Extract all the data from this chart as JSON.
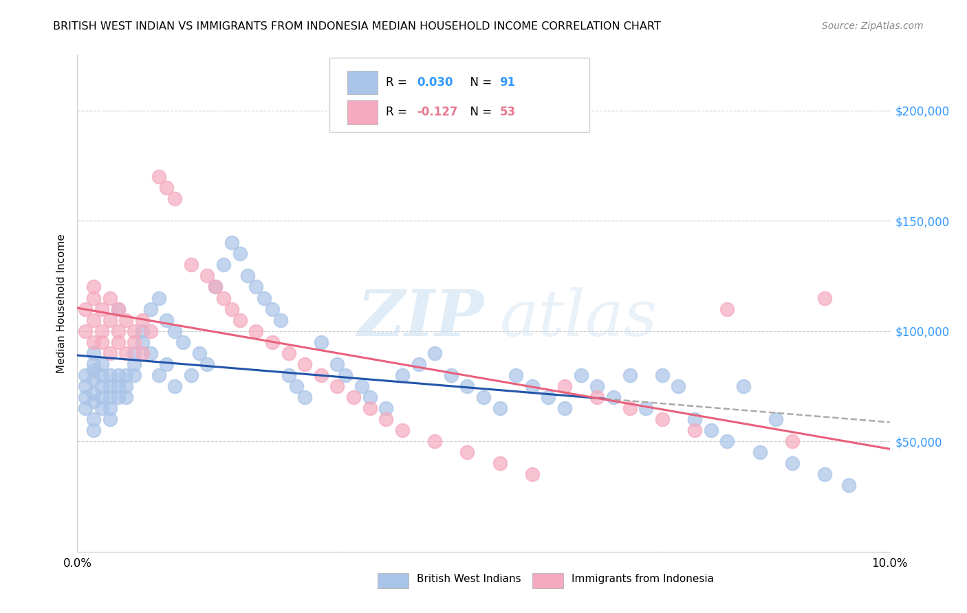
{
  "title": "BRITISH WEST INDIAN VS IMMIGRANTS FROM INDONESIA MEDIAN HOUSEHOLD INCOME CORRELATION CHART",
  "source": "Source: ZipAtlas.com",
  "ylabel": "Median Household Income",
  "r1": 0.03,
  "r2": -0.127,
  "n1": 91,
  "n2": 53,
  "legend_label1": "British West Indians",
  "legend_label2": "Immigrants from Indonesia",
  "color1": "#aac4e8",
  "color2": "#f5aabf",
  "line_color1": "#2255aa",
  "line_color2": "#e8607a",
  "line_color_dashed": "#aaaaaa",
  "ylim": [
    0,
    225000
  ],
  "xlim": [
    0.0,
    0.1
  ],
  "yticks": [
    0,
    50000,
    100000,
    150000,
    200000
  ],
  "ytick_labels": [
    "",
    "$50,000",
    "$100,000",
    "$150,000",
    "$200,000"
  ],
  "watermark_zip": "ZIP",
  "watermark_atlas": "atlas",
  "blue_x": [
    0.001,
    0.001,
    0.001,
    0.001,
    0.002,
    0.002,
    0.002,
    0.002,
    0.002,
    0.002,
    0.002,
    0.002,
    0.003,
    0.003,
    0.003,
    0.003,
    0.003,
    0.004,
    0.004,
    0.004,
    0.004,
    0.004,
    0.005,
    0.005,
    0.005,
    0.005,
    0.006,
    0.006,
    0.006,
    0.007,
    0.007,
    0.007,
    0.008,
    0.008,
    0.009,
    0.009,
    0.01,
    0.01,
    0.011,
    0.011,
    0.012,
    0.012,
    0.013,
    0.014,
    0.015,
    0.016,
    0.017,
    0.018,
    0.019,
    0.02,
    0.021,
    0.022,
    0.023,
    0.024,
    0.025,
    0.026,
    0.027,
    0.028,
    0.03,
    0.032,
    0.033,
    0.035,
    0.036,
    0.038,
    0.04,
    0.042,
    0.044,
    0.046,
    0.048,
    0.05,
    0.052,
    0.054,
    0.056,
    0.058,
    0.06,
    0.062,
    0.064,
    0.066,
    0.068,
    0.07,
    0.072,
    0.074,
    0.076,
    0.078,
    0.08,
    0.082,
    0.084,
    0.086,
    0.088,
    0.092,
    0.095
  ],
  "blue_y": [
    75000,
    80000,
    70000,
    65000,
    72000,
    68000,
    78000,
    82000,
    60000,
    85000,
    90000,
    55000,
    75000,
    80000,
    70000,
    65000,
    85000,
    75000,
    80000,
    70000,
    65000,
    60000,
    80000,
    75000,
    70000,
    110000,
    80000,
    75000,
    70000,
    90000,
    85000,
    80000,
    100000,
    95000,
    110000,
    90000,
    115000,
    80000,
    105000,
    85000,
    100000,
    75000,
    95000,
    80000,
    90000,
    85000,
    120000,
    130000,
    140000,
    135000,
    125000,
    120000,
    115000,
    110000,
    105000,
    80000,
    75000,
    70000,
    95000,
    85000,
    80000,
    75000,
    70000,
    65000,
    80000,
    85000,
    90000,
    80000,
    75000,
    70000,
    65000,
    80000,
    75000,
    70000,
    65000,
    80000,
    75000,
    70000,
    80000,
    65000,
    80000,
    75000,
    60000,
    55000,
    50000,
    75000,
    45000,
    60000,
    40000,
    35000,
    30000
  ],
  "pink_x": [
    0.001,
    0.001,
    0.002,
    0.002,
    0.002,
    0.002,
    0.003,
    0.003,
    0.003,
    0.004,
    0.004,
    0.004,
    0.005,
    0.005,
    0.005,
    0.006,
    0.006,
    0.007,
    0.007,
    0.008,
    0.008,
    0.009,
    0.01,
    0.011,
    0.012,
    0.014,
    0.016,
    0.017,
    0.018,
    0.019,
    0.02,
    0.022,
    0.024,
    0.026,
    0.028,
    0.03,
    0.032,
    0.034,
    0.036,
    0.038,
    0.04,
    0.044,
    0.048,
    0.052,
    0.056,
    0.06,
    0.064,
    0.068,
    0.072,
    0.076,
    0.08,
    0.088,
    0.092
  ],
  "pink_y": [
    100000,
    110000,
    105000,
    95000,
    115000,
    120000,
    100000,
    110000,
    95000,
    105000,
    115000,
    90000,
    110000,
    100000,
    95000,
    105000,
    90000,
    100000,
    95000,
    105000,
    90000,
    100000,
    170000,
    165000,
    160000,
    130000,
    125000,
    120000,
    115000,
    110000,
    105000,
    100000,
    95000,
    90000,
    85000,
    80000,
    75000,
    70000,
    65000,
    60000,
    55000,
    50000,
    45000,
    40000,
    35000,
    75000,
    70000,
    65000,
    60000,
    55000,
    110000,
    50000,
    115000
  ]
}
